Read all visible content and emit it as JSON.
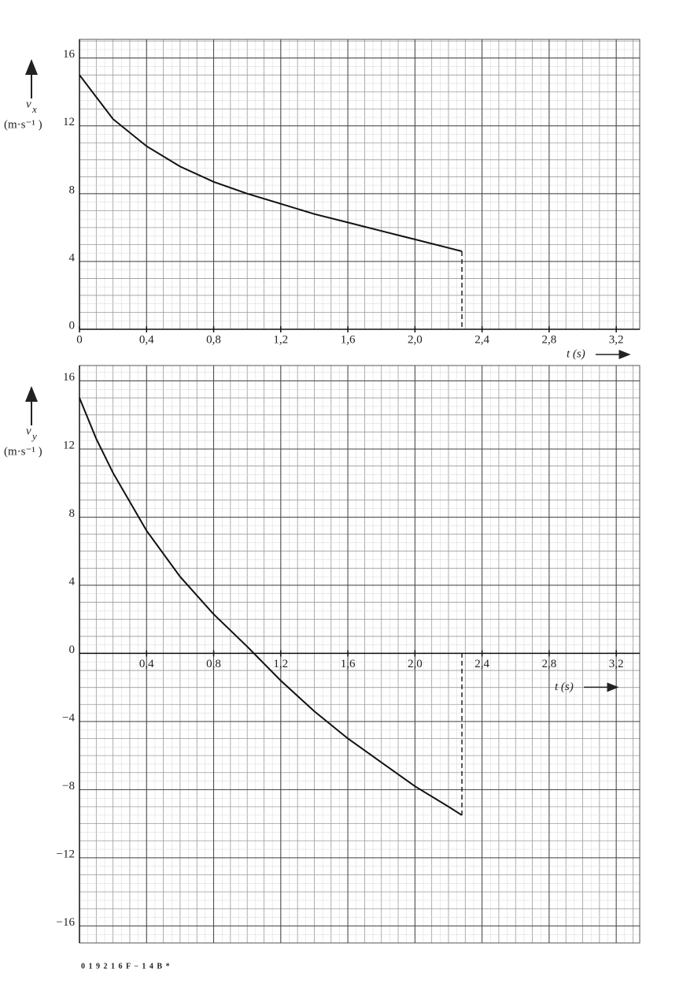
{
  "chart_data": [
    {
      "type": "line",
      "ylabel": {
        "symbol": "v",
        "subscript": "x",
        "unit": "(m·s⁻¹ )"
      },
      "xlabel": "t (s)",
      "x": [
        0,
        0.2,
        0.4,
        0.6,
        0.8,
        1.0,
        1.2,
        1.4,
        1.6,
        1.8,
        2.0,
        2.2,
        2.28
      ],
      "values": [
        15,
        12.4,
        10.8,
        9.6,
        8.7,
        8.0,
        7.4,
        6.8,
        6.3,
        5.8,
        5.3,
        4.8,
        4.6
      ],
      "color": "#111111",
      "xlim": [
        0,
        3.34
      ],
      "ylim": [
        0,
        17.1
      ],
      "xticks": [
        0,
        {
          "value": 0.4,
          "label": "0,4"
        },
        {
          "value": 0.8,
          "label": "0,8"
        },
        {
          "value": 1.2,
          "label": "1,2"
        },
        {
          "value": 1.6,
          "label": "1,6"
        },
        {
          "value": 2.0,
          "label": "2,0"
        },
        {
          "value": 2.4,
          "label": "2,4"
        },
        {
          "value": 2.8,
          "label": "2,8"
        },
        {
          "value": 3.2,
          "label": "3,2"
        }
      ],
      "yticks": [
        0,
        4,
        8,
        12,
        16
      ],
      "grid": true
    },
    {
      "type": "line",
      "ylabel": {
        "symbol": "v",
        "subscript": "y",
        "unit": "(m·s⁻¹ )"
      },
      "xlabel": "t (s)",
      "x": [
        0,
        0.1,
        0.2,
        0.4,
        0.6,
        0.8,
        1.0,
        1.2,
        1.4,
        1.6,
        1.8,
        2.0,
        2.2,
        2.28
      ],
      "values": [
        15,
        12.6,
        10.6,
        7.2,
        4.5,
        2.3,
        0.4,
        -1.6,
        -3.4,
        -5.0,
        -6.4,
        -7.8,
        -9.0,
        -9.5
      ],
      "color": "#111111",
      "xlim": [
        0,
        3.34
      ],
      "ylim": [
        -17,
        16.9
      ],
      "xticks": [
        {
          "value": 0.4,
          "label": "0,4"
        },
        {
          "value": 0.8,
          "label": "0,8"
        },
        {
          "value": 1.2,
          "label": "1,2"
        },
        {
          "value": 1.6,
          "label": "1,6"
        },
        {
          "value": 2.0,
          "label": "2,0"
        },
        {
          "value": 2.4,
          "label": "2,4"
        },
        {
          "value": 2.8,
          "label": "2,8"
        },
        {
          "value": 3.2,
          "label": "3,2"
        }
      ],
      "yticks": [
        {
          "value": -16,
          "label": "−16"
        },
        {
          "value": -12,
          "label": "−12"
        },
        {
          "value": -8,
          "label": "−8"
        },
        {
          "value": -4,
          "label": "−4"
        },
        0,
        4,
        8,
        12,
        16
      ],
      "grid": true
    }
  ],
  "footer": "0 1 9 2 1 6 F − 1 4 B *"
}
